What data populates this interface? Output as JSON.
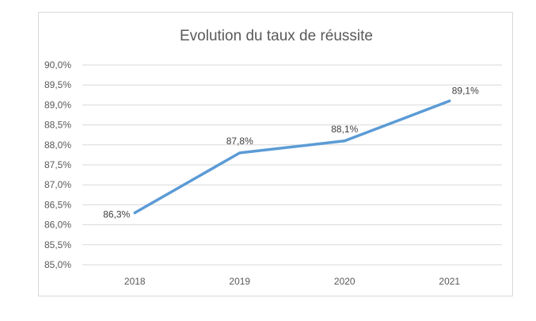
{
  "chart_data": {
    "type": "line",
    "title": "Evolution du taux de réussite",
    "xlabel": "",
    "ylabel": "",
    "categories": [
      "2018",
      "2019",
      "2020",
      "2021"
    ],
    "series": [
      {
        "values": [
          86.3,
          87.8,
          88.1,
          89.1
        ],
        "data_labels": [
          "86,3%",
          "87,8%",
          "88,1%",
          "89,1%"
        ]
      }
    ],
    "ylim": [
      85.0,
      90.0
    ],
    "yticks": [
      85.0,
      85.5,
      86.0,
      86.5,
      87.0,
      87.5,
      88.0,
      88.5,
      89.0,
      89.5,
      90.0
    ],
    "ytick_labels": [
      "85,0%",
      "85,5%",
      "86,0%",
      "86,5%",
      "87,0%",
      "87,5%",
      "88,0%",
      "88,5%",
      "89,0%",
      "89,5%",
      "90,0%"
    ],
    "grid": true,
    "legend": "none",
    "colors": {
      "line": "#5b9bd5",
      "grid": "#d9d9d9",
      "text": "#595959",
      "border": "#d9d9d9"
    }
  }
}
